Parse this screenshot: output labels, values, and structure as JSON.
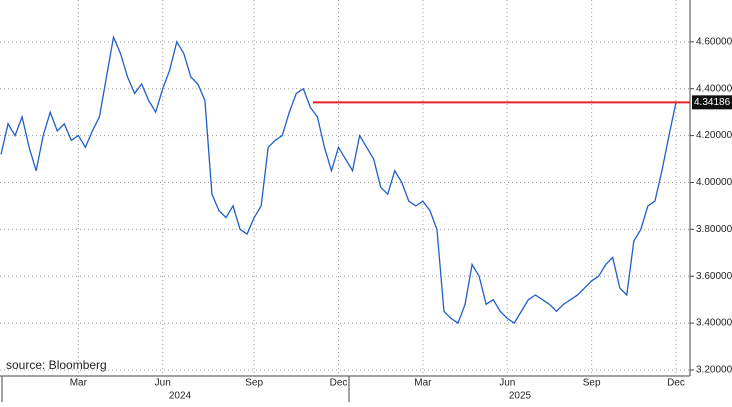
{
  "chart_data": {
    "type": "line",
    "source": "source: Bloomberg",
    "categories": [
      null,
      null,
      null,
      null,
      null,
      null,
      null,
      null,
      null,
      null,
      null,
      "Mar",
      null,
      null,
      null,
      null,
      null,
      null,
      null,
      null,
      null,
      null,
      null,
      "Jun",
      null,
      null,
      null,
      null,
      null,
      null,
      null,
      null,
      null,
      null,
      null,
      null,
      "Sep",
      null,
      null,
      null,
      null,
      null,
      null,
      null,
      null,
      null,
      null,
      null,
      "Dec",
      null,
      null,
      null,
      null,
      null,
      null,
      null,
      null,
      null,
      null,
      null,
      "Mar",
      null,
      null,
      null,
      null,
      null,
      null,
      null,
      null,
      null,
      null,
      null,
      "Jun",
      null,
      null,
      null,
      null,
      null,
      null,
      null,
      null,
      null,
      null,
      null,
      "Sep",
      null,
      null,
      null,
      null,
      null,
      null,
      null,
      null,
      null,
      null,
      null,
      "Dec"
    ],
    "years": [
      "2024",
      "2025"
    ],
    "series": [
      {
        "color": "#1f5fc8",
        "values": [
          4.12,
          4.25,
          4.2,
          4.28,
          4.15,
          4.05,
          4.2,
          4.3,
          4.22,
          4.25,
          4.18,
          4.2,
          4.15,
          4.22,
          4.28,
          4.45,
          4.62,
          4.55,
          4.45,
          4.38,
          4.42,
          4.35,
          4.3,
          4.4,
          4.48,
          4.6,
          4.55,
          4.45,
          4.42,
          4.35,
          3.95,
          3.88,
          3.85,
          3.9,
          3.8,
          3.78,
          3.85,
          3.9,
          4.15,
          4.18,
          4.2,
          4.3,
          4.38,
          4.4,
          4.32,
          4.28,
          4.15,
          4.05,
          4.15,
          4.1,
          4.05,
          4.2,
          4.15,
          4.1,
          3.98,
          3.95,
          4.05,
          4.0,
          3.92,
          3.9,
          3.92,
          3.88,
          3.8,
          3.45,
          3.42,
          3.4,
          3.48,
          3.65,
          3.6,
          3.48,
          3.5,
          3.45,
          3.42,
          3.4,
          3.45,
          3.5,
          3.52,
          3.5,
          3.48,
          3.45,
          3.48,
          3.5,
          3.52,
          3.55,
          3.58,
          3.6,
          3.65,
          3.68,
          3.55,
          3.52,
          3.75,
          3.8,
          3.9,
          3.92,
          4.05,
          4.2,
          4.34186
        ]
      }
    ],
    "reference_line": {
      "value": 4.34186,
      "label": "4.34186",
      "color": "#e8202a"
    },
    "ylim": [
      3.17,
      4.77
    ],
    "yticks": [
      {
        "value": 3.2,
        "label": "3.20000"
      },
      {
        "value": 3.4,
        "label": "3.40000"
      },
      {
        "value": 3.6,
        "label": "3.60000"
      },
      {
        "value": 3.8,
        "label": "3.80000"
      },
      {
        "value": 4.0,
        "label": "4.00000"
      },
      {
        "value": 4.2,
        "label": "4.20000"
      },
      {
        "value": 4.4,
        "label": "4.40000"
      },
      {
        "value": 4.6,
        "label": "4.60000"
      }
    ],
    "grid": true
  }
}
